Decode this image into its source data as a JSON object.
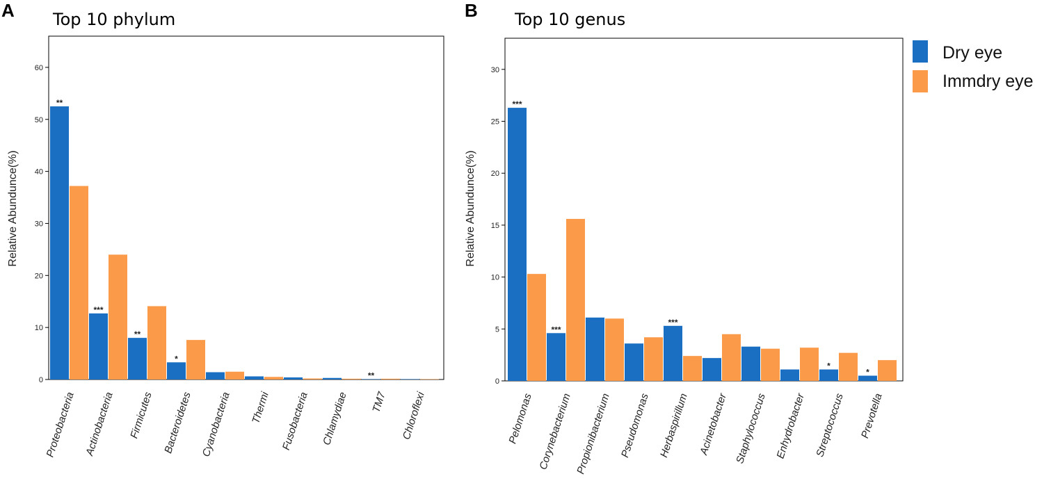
{
  "colors": {
    "dry": "#1a6fc2",
    "immdry": "#fb9b4a"
  },
  "legend": {
    "items": [
      {
        "label": "Dry  eye",
        "color": "#1a6fc2"
      },
      {
        "label": "Immdry eye",
        "color": "#fb9b4a"
      }
    ]
  },
  "chart_data": [
    {
      "panel": "A",
      "type": "bar",
      "title": "Top 10 phylum",
      "ylabel": "Relative Abundunce(%)",
      "xlabel": "",
      "ylim": [
        0,
        66
      ],
      "yticks": [
        0,
        10,
        20,
        30,
        40,
        50,
        60
      ],
      "categories": [
        "Proteobacteria",
        "Actinobacteria",
        "Firmicutes",
        "Bacteroidetes",
        "Cyanobacteria",
        "Thermi",
        "Fusobacteria",
        "Chlamydiae",
        "TM7",
        "Chloroflexi"
      ],
      "series": [
        {
          "name": "Dry  eye",
          "values": [
            52.5,
            12.7,
            8.0,
            3.3,
            1.4,
            0.6,
            0.4,
            0.3,
            0.08,
            0.05
          ]
        },
        {
          "name": "Immdry eye",
          "values": [
            37.2,
            24.0,
            14.1,
            7.6,
            1.5,
            0.5,
            0.2,
            0.15,
            0.15,
            0.05
          ]
        }
      ],
      "significance": [
        "**",
        "***",
        "**",
        "*",
        "",
        "",
        "",
        "",
        "**",
        ""
      ]
    },
    {
      "panel": "B",
      "type": "bar",
      "title": "Top 10 genus",
      "ylabel": "Relative Abundunce(%)",
      "xlabel": "",
      "ylim": [
        0,
        33
      ],
      "yticks": [
        0,
        5,
        10,
        15,
        20,
        25,
        30
      ],
      "categories": [
        "Pelomonas",
        "Corynebacterium",
        "Propionibacterium",
        "Pseudomonas",
        "Herbaspirillum",
        "Acinetobacter",
        "Staphylococcus",
        "Enhydrobacter",
        "Streptococcus",
        "Prevotella"
      ],
      "series": [
        {
          "name": "Dry  eye",
          "values": [
            26.3,
            4.6,
            6.1,
            3.6,
            5.3,
            2.2,
            3.3,
            1.1,
            1.1,
            0.5
          ]
        },
        {
          "name": "Immdry eye",
          "values": [
            10.3,
            15.6,
            6.0,
            4.2,
            2.4,
            4.5,
            3.1,
            3.2,
            2.7,
            2.0
          ]
        }
      ],
      "significance": [
        "***",
        "***",
        "",
        "",
        "***",
        "",
        "",
        "",
        "*",
        "*"
      ]
    }
  ]
}
